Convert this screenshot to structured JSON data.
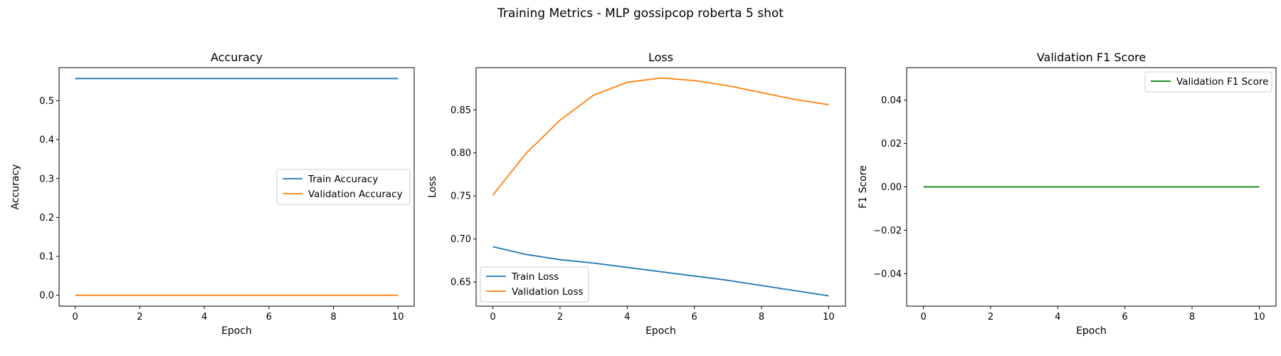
{
  "title": "Training Metrics - MLP gossipcop roberta 5 shot",
  "colors": {
    "train": "#1f77b4",
    "validation": "#ff7f0e",
    "f1": "#008000"
  },
  "chart_data": [
    {
      "type": "line",
      "title": "Accuracy",
      "xlabel": "Epoch",
      "ylabel": "Accuracy",
      "xlim": [
        -0.5,
        10.5
      ],
      "ylim": [
        -0.028,
        0.585
      ],
      "xticks": [
        0,
        2,
        4,
        6,
        8,
        10
      ],
      "yticks": [
        0.0,
        0.1,
        0.2,
        0.3,
        0.4,
        0.5
      ],
      "ytick_labels": [
        "0.0",
        "0.1",
        "0.2",
        "0.3",
        "0.4",
        "0.5"
      ],
      "legend": "center-right",
      "grid": false,
      "x": [
        0,
        1,
        2,
        3,
        4,
        5,
        6,
        7,
        8,
        9,
        10
      ],
      "series": [
        {
          "name": "Train Accuracy",
          "color": "#1f77b4",
          "values": [
            0.557,
            0.557,
            0.557,
            0.557,
            0.557,
            0.557,
            0.557,
            0.557,
            0.557,
            0.557,
            0.557
          ]
        },
        {
          "name": "Validation Accuracy",
          "color": "#ff7f0e",
          "values": [
            0.0,
            0.0,
            0.0,
            0.0,
            0.0,
            0.0,
            0.0,
            0.0,
            0.0,
            0.0,
            0.0
          ]
        }
      ]
    },
    {
      "type": "line",
      "title": "Loss",
      "xlabel": "Epoch",
      "ylabel": "Loss",
      "xlim": [
        -0.5,
        10.5
      ],
      "ylim": [
        0.622,
        0.899
      ],
      "xticks": [
        0,
        2,
        4,
        6,
        8,
        10
      ],
      "yticks": [
        0.65,
        0.7,
        0.75,
        0.8,
        0.85
      ],
      "ytick_labels": [
        "0.65",
        "0.70",
        "0.75",
        "0.80",
        "0.85"
      ],
      "legend": "lower-left",
      "grid": false,
      "x": [
        0,
        1,
        2,
        3,
        4,
        5,
        6,
        7,
        8,
        9,
        10
      ],
      "series": [
        {
          "name": "Train Loss",
          "color": "#1f77b4",
          "values": [
            0.691,
            0.682,
            0.676,
            0.672,
            0.667,
            0.662,
            0.657,
            0.652,
            0.646,
            0.64,
            0.634
          ]
        },
        {
          "name": "Validation Loss",
          "color": "#ff7f0e",
          "values": [
            0.751,
            0.8,
            0.838,
            0.867,
            0.882,
            0.887,
            0.884,
            0.878,
            0.87,
            0.862,
            0.856
          ]
        }
      ]
    },
    {
      "type": "line",
      "title": "Validation F1 Score",
      "xlabel": "Epoch",
      "ylabel": "F1 Score",
      "xlim": [
        -0.5,
        10.5
      ],
      "ylim": [
        -0.055,
        0.055
      ],
      "xticks": [
        0,
        2,
        4,
        6,
        8,
        10
      ],
      "yticks": [
        -0.04,
        -0.02,
        0.0,
        0.02,
        0.04
      ],
      "ytick_labels": [
        "−0.04",
        "−0.02",
        "0.00",
        "0.02",
        "0.04"
      ],
      "legend": "upper-right",
      "grid": false,
      "x": [
        0,
        1,
        2,
        3,
        4,
        5,
        6,
        7,
        8,
        9,
        10
      ],
      "series": [
        {
          "name": "Validation F1 Score",
          "color": "#008000",
          "values": [
            0.0,
            0.0,
            0.0,
            0.0,
            0.0,
            0.0,
            0.0,
            0.0,
            0.0,
            0.0,
            0.0
          ]
        }
      ]
    }
  ]
}
